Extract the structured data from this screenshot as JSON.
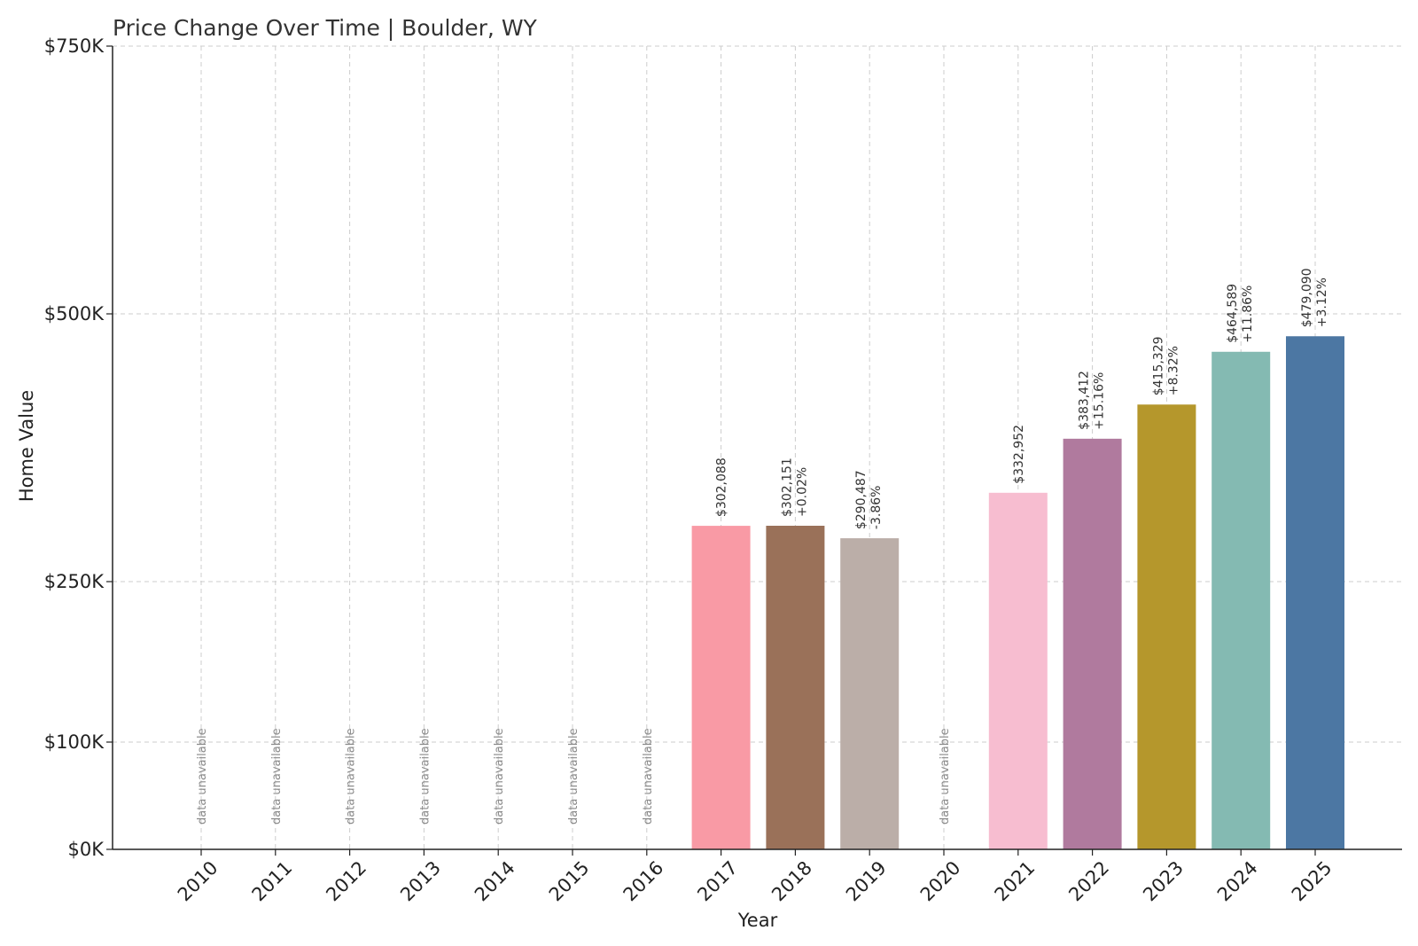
{
  "chart_data": {
    "type": "bar",
    "title": "Price Change Over Time | Boulder, WY",
    "xlabel": "Year",
    "ylabel": "Home Value",
    "categories": [
      "2010",
      "2011",
      "2012",
      "2013",
      "2014",
      "2015",
      "2016",
      "2017",
      "2018",
      "2019",
      "2020",
      "2021",
      "2022",
      "2023",
      "2024",
      "2025"
    ],
    "values": [
      null,
      null,
      null,
      null,
      null,
      null,
      null,
      302088,
      302151,
      290487,
      null,
      332952,
      383412,
      415329,
      464589,
      479090
    ],
    "value_labels": [
      "",
      "",
      "",
      "",
      "",
      "",
      "",
      "$302,088",
      "$302,151",
      "$290,487",
      "",
      "$332,952",
      "$383,412",
      "$415,329",
      "$464,589",
      "$479,090"
    ],
    "change_labels": [
      "",
      "",
      "",
      "",
      "",
      "",
      "",
      "",
      "+0.02%",
      "-3.86%",
      "",
      "",
      "+15.16%",
      "+8.32%",
      "+11.86%",
      "+3.12%"
    ],
    "unavailable_label": "data unavailable",
    "bar_colors": [
      "",
      "",
      "",
      "",
      "",
      "",
      "",
      "#f99aa5",
      "#9a7159",
      "#bbaea8",
      "",
      "#f7bdd0",
      "#b07a9e",
      "#b5972c",
      "#84bab2",
      "#4c77a3"
    ],
    "y_ticks": [
      0,
      100000,
      250000,
      500000,
      750000
    ],
    "y_tick_labels": [
      "$0K",
      "$100K",
      "$250K",
      "$500K",
      "$750K"
    ],
    "ylim": [
      0,
      750000
    ],
    "y_scale": "nonlinear (piecewise)",
    "grid": true
  }
}
